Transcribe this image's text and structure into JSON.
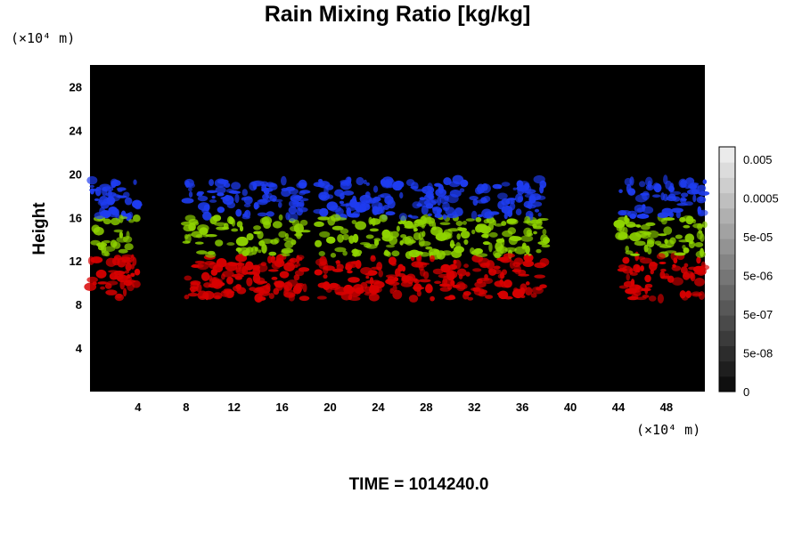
{
  "chart_data": {
    "type": "heatmap",
    "title": "Rain Mixing Ratio [kg/kg]",
    "ylabel": "Height",
    "xlabel": "",
    "y_unit": "(×10⁴ m)",
    "x_unit": "(×10⁴ m)",
    "xlim": [
      0,
      51.2
    ],
    "ylim": [
      0,
      30
    ],
    "x_ticks": [
      "4",
      "8",
      "12",
      "16",
      "20",
      "24",
      "28",
      "32",
      "36",
      "40",
      "44",
      "48"
    ],
    "y_ticks": [
      "4",
      "8",
      "12",
      "16",
      "20",
      "24",
      "28"
    ],
    "colorbar": {
      "ticks": [
        "0.005",
        "0.0005",
        "5e-05",
        "5e-06",
        "5e-07",
        "5e-08",
        "0"
      ],
      "levels": [
        0,
        5e-08,
        5e-07,
        5e-06,
        5e-05,
        0.0005,
        0.005
      ]
    },
    "layers": [
      {
        "name": "blue",
        "color": "#1e3cf0",
        "y_range": [
          16,
          19.5
        ]
      },
      {
        "name": "green",
        "color": "#8fd400",
        "y_range": [
          12.5,
          16
        ]
      },
      {
        "name": "red",
        "color": "#d80000",
        "y_range": [
          8.5,
          12.5
        ]
      }
    ],
    "cloud_clusters_x": [
      [
        0,
        4
      ],
      [
        8,
        18
      ],
      [
        19,
        24
      ],
      [
        24,
        28
      ],
      [
        28,
        33
      ],
      [
        33,
        38
      ],
      [
        44,
        51.2
      ]
    ],
    "background_color": "#000000"
  },
  "footer": {
    "time_label": "TIME = 1014240.0"
  }
}
